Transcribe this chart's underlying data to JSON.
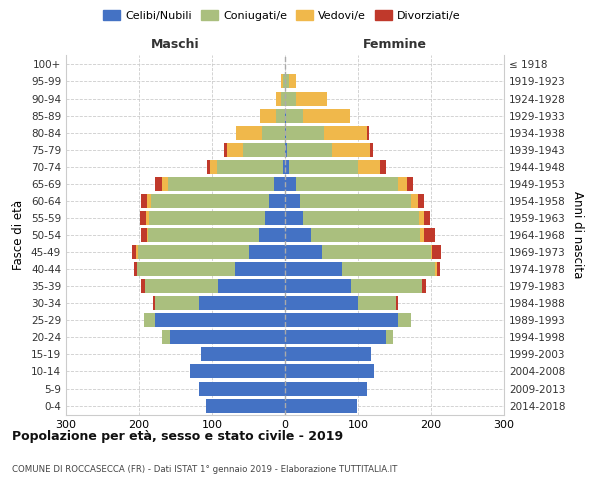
{
  "age_groups": [
    "0-4",
    "5-9",
    "10-14",
    "15-19",
    "20-24",
    "25-29",
    "30-34",
    "35-39",
    "40-44",
    "45-49",
    "50-54",
    "55-59",
    "60-64",
    "65-69",
    "70-74",
    "75-79",
    "80-84",
    "85-89",
    "90-94",
    "95-99",
    "100+"
  ],
  "birth_years": [
    "2014-2018",
    "2009-2013",
    "2004-2008",
    "1999-2003",
    "1994-1998",
    "1989-1993",
    "1984-1988",
    "1979-1983",
    "1974-1978",
    "1969-1973",
    "1964-1968",
    "1959-1963",
    "1954-1958",
    "1949-1953",
    "1944-1948",
    "1939-1943",
    "1934-1938",
    "1929-1933",
    "1924-1928",
    "1919-1923",
    "≤ 1918"
  ],
  "male": {
    "celibi": [
      108,
      118,
      130,
      115,
      158,
      178,
      118,
      92,
      68,
      50,
      35,
      28,
      22,
      15,
      3,
      0,
      0,
      0,
      0,
      0,
      0
    ],
    "coniugati": [
      0,
      0,
      0,
      0,
      10,
      15,
      60,
      100,
      135,
      152,
      152,
      158,
      162,
      145,
      90,
      58,
      32,
      12,
      5,
      3,
      0
    ],
    "vedovi": [
      0,
      0,
      0,
      0,
      0,
      0,
      0,
      0,
      0,
      2,
      2,
      5,
      5,
      8,
      10,
      22,
      35,
      22,
      8,
      2,
      0
    ],
    "divorziati": [
      0,
      0,
      0,
      0,
      0,
      0,
      3,
      5,
      4,
      6,
      8,
      8,
      8,
      10,
      4,
      3,
      0,
      0,
      0,
      0,
      0
    ]
  },
  "female": {
    "nubili": [
      98,
      112,
      122,
      118,
      138,
      155,
      100,
      90,
      78,
      50,
      35,
      25,
      20,
      15,
      5,
      3,
      2,
      2,
      0,
      0,
      0
    ],
    "coniugate": [
      0,
      0,
      0,
      0,
      10,
      18,
      52,
      98,
      128,
      150,
      150,
      158,
      152,
      140,
      95,
      62,
      52,
      22,
      15,
      5,
      0
    ],
    "vedove": [
      0,
      0,
      0,
      0,
      0,
      0,
      0,
      0,
      2,
      2,
      5,
      8,
      10,
      12,
      30,
      52,
      58,
      65,
      42,
      10,
      0
    ],
    "divorziate": [
      0,
      0,
      0,
      0,
      0,
      0,
      3,
      5,
      5,
      12,
      15,
      8,
      8,
      8,
      8,
      3,
      3,
      0,
      0,
      0,
      0
    ]
  },
  "colors": {
    "celibi": "#4472C4",
    "coniugati": "#AABF7E",
    "vedovi": "#F0B84B",
    "divorziati": "#C0392B"
  },
  "xlim": 300,
  "title": "Popolazione per età, sesso e stato civile - 2019",
  "subtitle": "COMUNE DI ROCCASECCA (FR) - Dati ISTAT 1° gennaio 2019 - Elaborazione TUTTITALIA.IT",
  "ylabel_left": "Fasce di età",
  "ylabel_right": "Anni di nascita",
  "xlabel_left": "Maschi",
  "xlabel_right": "Femmine",
  "legend_labels": [
    "Celibi/Nubili",
    "Coniugati/e",
    "Vedovi/e",
    "Divorziati/e"
  ],
  "background_color": "#ffffff",
  "grid_color": "#cccccc"
}
